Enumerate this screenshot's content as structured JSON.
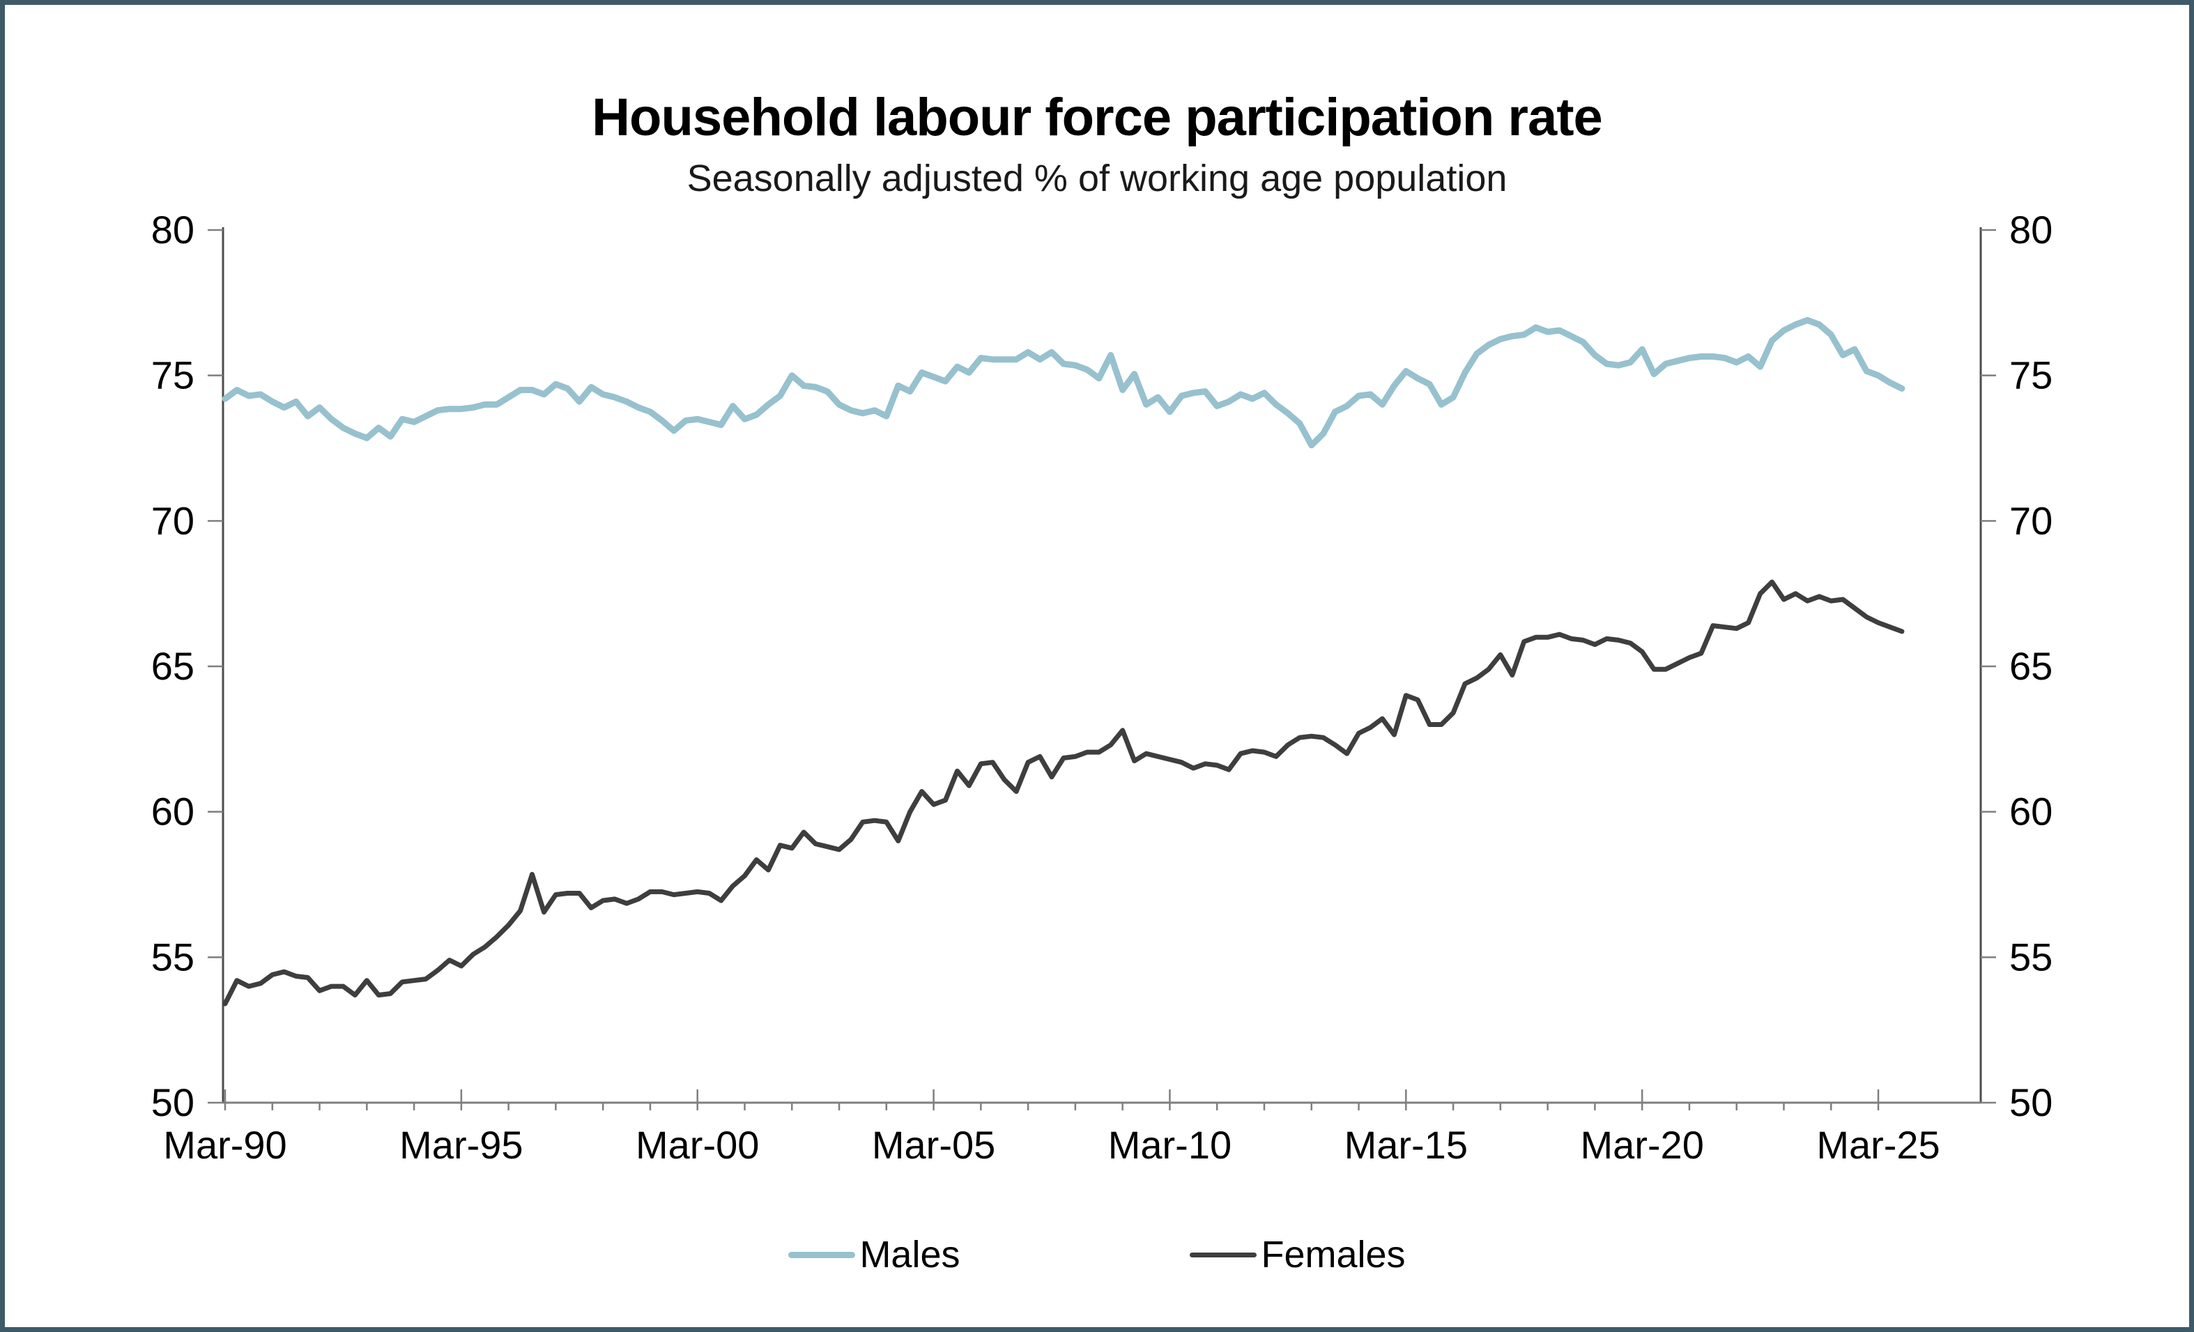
{
  "title": "Household labour force participation rate",
  "subtitle": "Seasonally adjusted % of working age population",
  "legend": {
    "males_label": "Males",
    "females_label": "Females"
  },
  "colors": {
    "males_line": "#97c1ce",
    "females_line": "#3e3e3e",
    "frame_border": "#3e5a68",
    "axis_line": "#4d4d4d",
    "tick_mark": "#7f7f7f",
    "label_text": "#000000"
  },
  "chart_data": {
    "type": "line",
    "title": "Household labour force participation rate",
    "subtitle": "Seasonally adjusted % of working age population",
    "x_axis": {
      "tick_labels": [
        "Mar-90",
        "Mar-95",
        "Mar-00",
        "Mar-05",
        "Mar-10",
        "Mar-15",
        "Mar-20",
        "Mar-25"
      ],
      "points_per_year": 4,
      "label_every_years": 5,
      "first_point": "Mar-90",
      "last_point": "Sep-25"
    },
    "y_axis": {
      "ticks": [
        50,
        55,
        60,
        65,
        70,
        75,
        80
      ],
      "ylim": [
        50,
        80
      ],
      "sides": "both",
      "gridlines": false
    },
    "legend_position": "bottom",
    "series": [
      {
        "name": "Males",
        "color": "#97c1ce",
        "stroke_width": 9,
        "values": [
          74.2,
          74.5,
          74.3,
          74.35,
          74.1,
          73.9,
          74.1,
          73.6,
          73.9,
          73.5,
          73.2,
          73.0,
          72.85,
          73.2,
          72.9,
          73.5,
          73.4,
          73.6,
          73.8,
          73.85,
          73.85,
          73.9,
          74.0,
          74.0,
          74.25,
          74.5,
          74.5,
          74.35,
          74.7,
          74.55,
          74.1,
          74.6,
          74.35,
          74.25,
          74.1,
          73.9,
          73.75,
          73.45,
          73.1,
          73.45,
          73.5,
          73.4,
          73.3,
          73.95,
          73.5,
          73.65,
          74.0,
          74.3,
          75.0,
          74.65,
          74.6,
          74.45,
          74.0,
          73.8,
          73.7,
          73.8,
          73.6,
          74.65,
          74.45,
          75.1,
          74.95,
          74.8,
          75.3,
          75.1,
          75.6,
          75.55,
          75.55,
          75.55,
          75.8,
          75.55,
          75.8,
          75.4,
          75.35,
          75.2,
          74.9,
          75.7,
          74.5,
          75.05,
          74.0,
          74.25,
          73.75,
          74.3,
          74.4,
          74.45,
          73.95,
          74.1,
          74.35,
          74.2,
          74.4,
          74.0,
          73.7,
          73.35,
          72.6,
          73.0,
          73.75,
          73.95,
          74.3,
          74.35,
          74.0,
          74.65,
          75.15,
          74.9,
          74.7,
          74.0,
          74.25,
          75.1,
          75.75,
          76.05,
          76.25,
          76.35,
          76.4,
          76.65,
          76.5,
          76.55,
          76.35,
          76.15,
          75.7,
          75.4,
          75.35,
          75.45,
          75.9,
          75.05,
          75.4,
          75.5,
          75.6,
          75.65,
          75.65,
          75.6,
          75.45,
          75.65,
          75.3,
          76.2,
          76.55,
          76.75,
          76.9,
          76.75,
          76.4,
          75.7,
          75.9,
          75.15,
          75.0,
          74.75,
          74.55
        ]
      },
      {
        "name": "Females",
        "color": "#3e3e3e",
        "stroke_width": 7,
        "values": [
          53.4,
          54.2,
          54.0,
          54.1,
          54.4,
          54.5,
          54.35,
          54.3,
          53.85,
          54.0,
          54.0,
          53.7,
          54.2,
          53.7,
          53.75,
          54.15,
          54.2,
          54.25,
          54.55,
          54.9,
          54.7,
          55.1,
          55.35,
          55.7,
          56.1,
          56.6,
          57.85,
          56.55,
          57.15,
          57.2,
          57.2,
          56.7,
          56.95,
          57.0,
          56.85,
          57.0,
          57.25,
          57.25,
          57.15,
          57.2,
          57.25,
          57.2,
          56.95,
          57.45,
          57.8,
          58.35,
          58.0,
          58.85,
          58.75,
          59.3,
          58.9,
          58.8,
          58.7,
          59.05,
          59.65,
          59.7,
          59.65,
          59.0,
          60.0,
          60.7,
          60.25,
          60.4,
          61.4,
          60.9,
          61.65,
          61.7,
          61.1,
          60.7,
          61.7,
          61.9,
          61.2,
          61.85,
          61.9,
          62.05,
          62.05,
          62.3,
          62.8,
          61.75,
          62.0,
          61.9,
          61.8,
          61.7,
          61.5,
          61.65,
          61.6,
          61.45,
          62.0,
          62.1,
          62.05,
          61.9,
          62.3,
          62.55,
          62.6,
          62.55,
          62.3,
          62.0,
          62.7,
          62.9,
          63.2,
          62.65,
          64.0,
          63.85,
          63.0,
          63.0,
          63.4,
          64.4,
          64.6,
          64.9,
          65.4,
          64.7,
          65.85,
          66.0,
          66.0,
          66.1,
          65.95,
          65.9,
          65.75,
          65.95,
          65.9,
          65.8,
          65.5,
          64.9,
          64.9,
          65.1,
          65.3,
          65.45,
          66.4,
          66.35,
          66.3,
          66.5,
          67.5,
          67.9,
          67.3,
          67.5,
          67.25,
          67.4,
          67.25,
          67.3,
          67.0,
          66.7,
          66.5,
          66.35,
          66.2
        ]
      }
    ]
  }
}
